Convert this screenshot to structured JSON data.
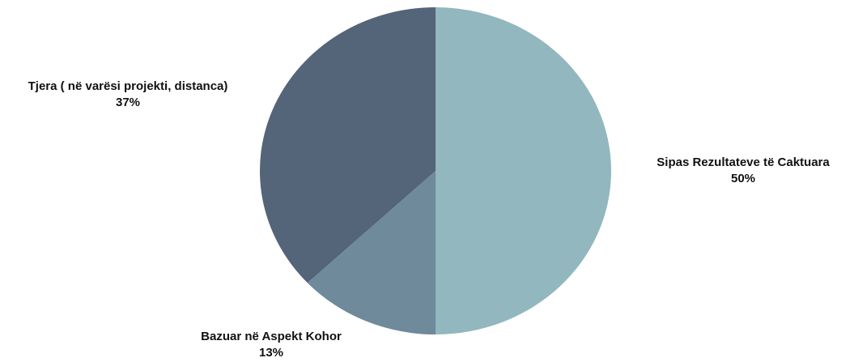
{
  "chart_data": {
    "type": "pie",
    "slices": [
      {
        "label": "Sipas Rezultateve të Caktuara",
        "value": 50,
        "value_label": "50%",
        "color": "#92b7be"
      },
      {
        "label": "Bazuar në Aspekt Kohor",
        "value": 13,
        "value_label": "13%",
        "color": "#6e8a9b"
      },
      {
        "label": "Tjera ( në varësi projekti, distanca)",
        "value": 37,
        "value_label": "37%",
        "color": "#546479"
      }
    ],
    "start_angle": "12 o'clock",
    "direction": "clockwise",
    "legend": "none"
  }
}
